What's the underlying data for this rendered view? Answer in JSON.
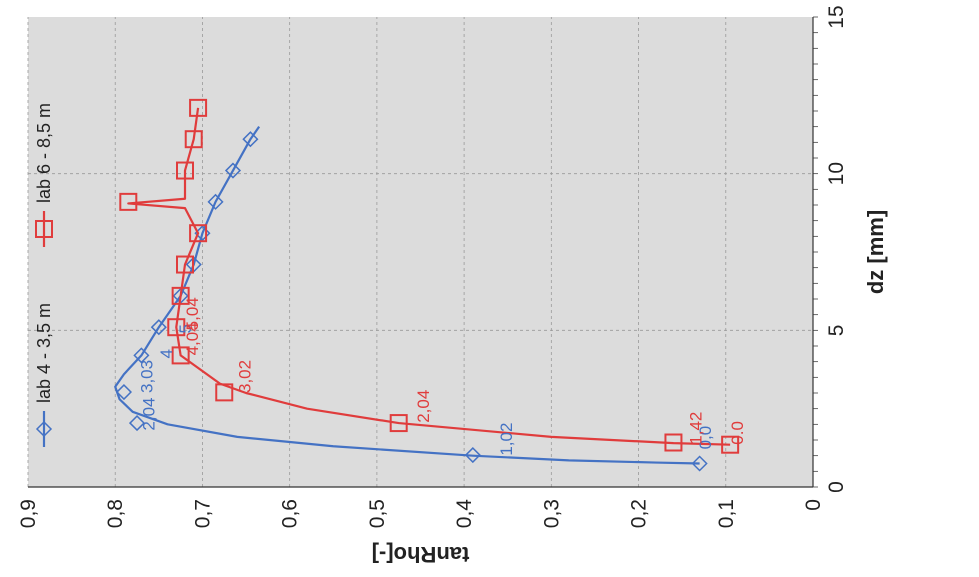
{
  "chart_data": {
    "type": "line",
    "orientation": "rotated-90",
    "x_axis": {
      "label": "dz [mm]",
      "range": [
        0,
        15
      ],
      "ticks": [
        "0",
        "5",
        "10",
        "15"
      ]
    },
    "y_axis": {
      "label": "tanRho[-]",
      "range": [
        0,
        0.9
      ],
      "ticks": [
        "0",
        "0,1",
        "0,2",
        "0,3",
        "0,4",
        "0,5",
        "0,6",
        "0,7",
        "0,8",
        "0,9"
      ]
    },
    "grid": true,
    "plot_background": "#dcdcdc",
    "legend_position": "top",
    "series": [
      {
        "name": "lab 4 - 3,5 m",
        "color": "#4472c4",
        "marker": "diamond",
        "line": [
          [
            0.75,
            0.13
          ],
          [
            0.78,
            0.18
          ],
          [
            0.85,
            0.28
          ],
          [
            1.0,
            0.39
          ],
          [
            1.3,
            0.55
          ],
          [
            1.6,
            0.66
          ],
          [
            2.0,
            0.74
          ],
          [
            2.4,
            0.78
          ],
          [
            2.8,
            0.795
          ],
          [
            3.2,
            0.8
          ],
          [
            3.6,
            0.79
          ],
          [
            4.2,
            0.77
          ],
          [
            5.1,
            0.75
          ],
          [
            6.1,
            0.725
          ],
          [
            7.1,
            0.71
          ],
          [
            8.1,
            0.7
          ],
          [
            9.1,
            0.685
          ],
          [
            10.1,
            0.665
          ],
          [
            11.1,
            0.645
          ],
          [
            11.5,
            0.635
          ]
        ],
        "markers": [
          [
            0.75,
            0.13
          ],
          [
            1.02,
            0.39
          ],
          [
            2.04,
            0.775
          ],
          [
            3.03,
            0.79
          ],
          [
            4.2,
            0.77
          ],
          [
            5.1,
            0.75
          ],
          [
            6.1,
            0.725
          ],
          [
            7.1,
            0.71
          ],
          [
            8.1,
            0.7
          ],
          [
            9.1,
            0.685
          ],
          [
            10.1,
            0.665
          ],
          [
            11.1,
            0.645
          ]
        ]
      },
      {
        "name": "lab 6 - 8,5 m",
        "color": "#e03c3c",
        "marker": "square",
        "line": [
          [
            1.35,
            0.095
          ],
          [
            1.4,
            0.16
          ],
          [
            1.6,
            0.3
          ],
          [
            2.04,
            0.475
          ],
          [
            2.5,
            0.58
          ],
          [
            3.0,
            0.65
          ],
          [
            3.3,
            0.68
          ],
          [
            4.2,
            0.725
          ],
          [
            5.1,
            0.73
          ],
          [
            6.1,
            0.725
          ],
          [
            7.1,
            0.72
          ],
          [
            8.1,
            0.705
          ],
          [
            8.9,
            0.72
          ],
          [
            9.05,
            0.785
          ],
          [
            9.2,
            0.72
          ],
          [
            10.1,
            0.72
          ],
          [
            11.1,
            0.71
          ],
          [
            12.1,
            0.705
          ]
        ],
        "markers": [
          [
            1.35,
            0.095
          ],
          [
            1.42,
            0.16
          ],
          [
            2.04,
            0.475
          ],
          [
            3.02,
            0.675
          ],
          [
            4.2,
            0.725
          ],
          [
            5.1,
            0.73
          ],
          [
            6.1,
            0.725
          ],
          [
            7.1,
            0.72
          ],
          [
            8.1,
            0.705
          ],
          [
            9.1,
            0.785
          ],
          [
            10.1,
            0.72
          ],
          [
            11.1,
            0.71
          ],
          [
            12.1,
            0.705
          ]
        ]
      }
    ],
    "data_labels": [
      {
        "text": "0,0",
        "x": 1.2,
        "y": 0.117,
        "color": "#4472c4"
      },
      {
        "text": "1,02",
        "x": 1.0,
        "y": 0.345,
        "color": "#4472c4"
      },
      {
        "text": "2,04",
        "x": 1.8,
        "y": 0.755,
        "color": "#4472c4"
      },
      {
        "text": "3,03",
        "x": 3.0,
        "y": 0.757,
        "color": "#4472c4"
      },
      {
        "text": "4",
        "x": 4.1,
        "y": 0.735,
        "color": "#4472c4"
      },
      {
        "text": "5",
        "x": 4.9,
        "y": 0.713,
        "color": "#4472c4"
      },
      {
        "text": "0.0",
        "x": 1.35,
        "y": 0.08,
        "color": "#e03c3c"
      },
      {
        "text": "1,42",
        "x": 1.35,
        "y": 0.128,
        "color": "#e03c3c"
      },
      {
        "text": "2,04",
        "x": 2.05,
        "y": 0.44,
        "color": "#e03c3c"
      },
      {
        "text": "3,02",
        "x": 3.0,
        "y": 0.645,
        "color": "#e03c3c"
      },
      {
        "text": "4,04",
        "x": 4.2,
        "y": 0.705,
        "color": "#e03c3c"
      },
      {
        "text": "5,04",
        "x": 5.0,
        "y": 0.705,
        "color": "#e03c3c"
      }
    ]
  }
}
